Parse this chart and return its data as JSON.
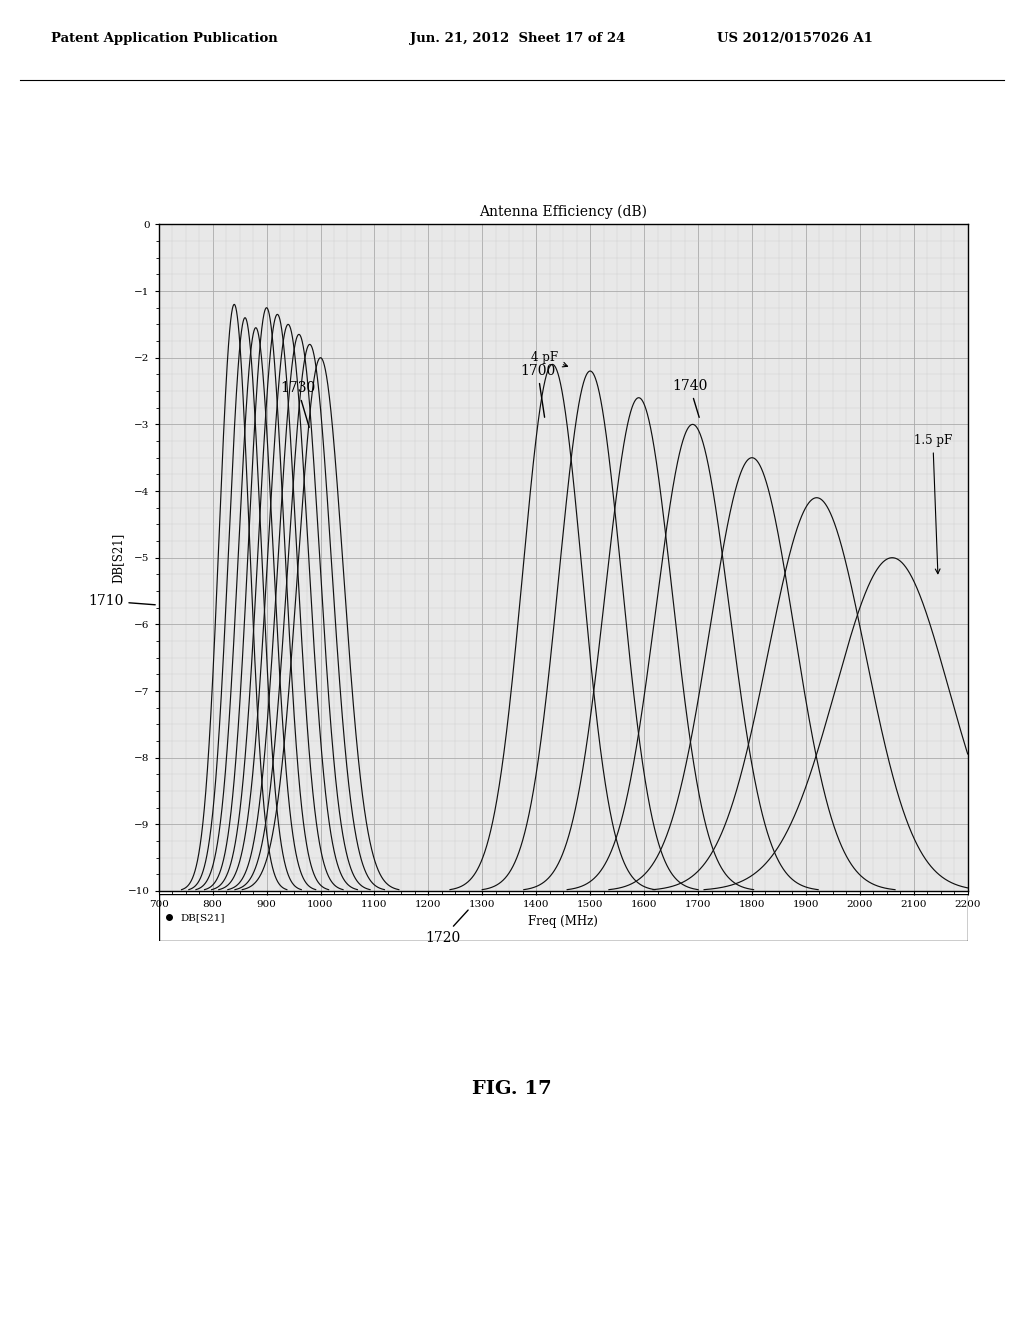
{
  "title": "Antenna Efficiency (dB)",
  "xlabel": "Freq (MHz)",
  "ylabel": "DB[S21]",
  "xmin": 700,
  "xmax": 2200,
  "ymin": -10,
  "ymax": 0,
  "xticks": [
    700,
    800,
    900,
    1000,
    1100,
    1200,
    1300,
    1400,
    1500,
    1600,
    1700,
    1800,
    1900,
    2000,
    2100,
    2200
  ],
  "yticks": [
    0,
    -1,
    -2,
    -3,
    -4,
    -5,
    -6,
    -7,
    -8,
    -9,
    -10
  ],
  "legend_label": "DB[S21]",
  "annotation_4pF": "4 pF",
  "annotation_1p5pF": "1.5 pF",
  "curve_peaks": [
    840,
    860,
    880,
    900,
    920,
    940,
    960,
    980,
    1000,
    1430,
    1500,
    1590,
    1690,
    1800,
    1920,
    2060
  ],
  "curve_peak_vals": [
    -1.2,
    -1.4,
    -1.55,
    -1.25,
    -1.35,
    -1.5,
    -1.65,
    -1.8,
    -2.0,
    -2.1,
    -2.2,
    -2.6,
    -3.0,
    -3.5,
    -4.1,
    -5.0
  ],
  "curve_sigmas": [
    28,
    30,
    32,
    33,
    35,
    37,
    38,
    40,
    42,
    55,
    58,
    62,
    68,
    78,
    90,
    105
  ],
  "background_color": "#e8e8e8",
  "line_color": "#111111",
  "grid_major_color": "#aaaaaa",
  "grid_minor_color": "#cccccc",
  "header_left": "Patent Application Publication",
  "header_mid": "Jun. 21, 2012  Sheet 17 of 24",
  "header_right": "US 2012/0157026 A1",
  "ref_1700": "1700",
  "ref_1710": "1710",
  "ref_1720": "1720",
  "ref_1730": "1730",
  "ref_1740": "1740",
  "fig_label": "FIG. 17"
}
